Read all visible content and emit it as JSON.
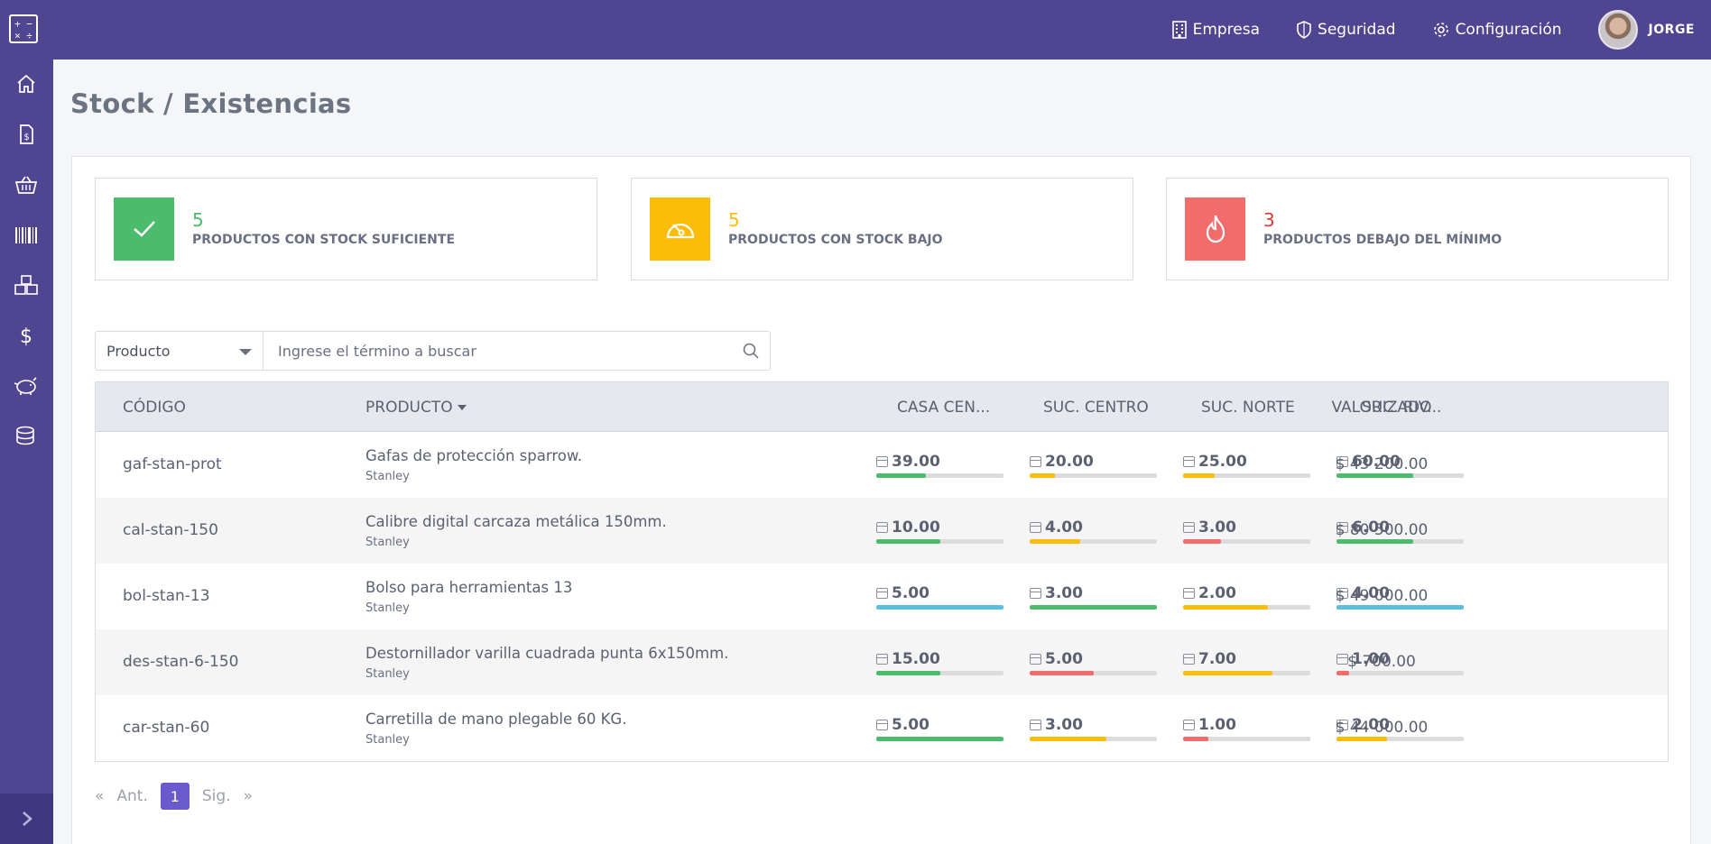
{
  "topbar": {
    "nav": [
      {
        "label": "Empresa",
        "icon": "building-icon"
      },
      {
        "label": "Seguridad",
        "icon": "shield-icon"
      },
      {
        "label": "Configuración",
        "icon": "gear-icon"
      }
    ],
    "user_name": "JORGE"
  },
  "sidebar": {
    "items": [
      "home-icon",
      "invoice-icon",
      "basket-icon",
      "barcode-icon",
      "boxes-icon",
      "dollar-icon",
      "piggy-bank-icon",
      "coins-icon"
    ],
    "toggle": "chevron-right-icon"
  },
  "page": {
    "title": "Stock / Existencias"
  },
  "stats": [
    {
      "value": "5",
      "label": "PRODUCTOS CON STOCK SUFICIENTE",
      "color": "#4cbb6c",
      "icon": "check-icon"
    },
    {
      "value": "5",
      "label": "PRODUCTOS CON STOCK BAJO",
      "color": "#fbbd08",
      "icon": "gauge-icon"
    },
    {
      "value": "3",
      "label": "PRODUCTOS DEBAJO DEL MÍNIMO",
      "color": "#f36c6c",
      "icon": "flame-icon"
    }
  ],
  "search": {
    "selected": "Producto",
    "placeholder": "Ingrese el término a buscar"
  },
  "table": {
    "headers": {
      "code": "CÓDIGO",
      "product": "PRODUCTO",
      "casa": "CASA CEN...",
      "centro": "SUC. CENTRO",
      "norte": "SUC. NORTE",
      "riv": "SUC. RIV...",
      "valor": "VALORIZADO"
    },
    "rows": [
      {
        "code": "gaf-stan-prot",
        "product": "Gafas de protección sparrow.",
        "brand": "Stanley",
        "stocks": [
          {
            "qty": "39.00",
            "level": 0.39,
            "color": "#4cbb6c"
          },
          {
            "qty": "20.00",
            "level": 0.2,
            "color": "#fbbd08"
          },
          {
            "qty": "25.00",
            "level": 0.25,
            "color": "#fbbd08"
          },
          {
            "qty": "60.00",
            "level": 0.6,
            "color": "#4cbb6c"
          }
        ],
        "value": "$ 43 200.00"
      },
      {
        "code": "cal-stan-150",
        "product": "Calibre digital carcaza metálica 150mm.",
        "brand": "Stanley",
        "stocks": [
          {
            "qty": "10.00",
            "level": 0.5,
            "color": "#4cbb6c"
          },
          {
            "qty": "4.00",
            "level": 0.4,
            "color": "#fbbd08"
          },
          {
            "qty": "3.00",
            "level": 0.3,
            "color": "#f36c6c"
          },
          {
            "qty": "6.00",
            "level": 0.6,
            "color": "#4cbb6c"
          }
        ],
        "value": "$ 80 500.00"
      },
      {
        "code": "bol-stan-13",
        "product": "Bolso para herramientas 13",
        "brand": "Stanley",
        "stocks": [
          {
            "qty": "5.00",
            "level": 1.0,
            "color": "#5bc0de"
          },
          {
            "qty": "3.00",
            "level": 1.0,
            "color": "#4cbb6c"
          },
          {
            "qty": "2.00",
            "level": 0.67,
            "color": "#fbbd08"
          },
          {
            "qty": "4.00",
            "level": 1.0,
            "color": "#5bc0de"
          }
        ],
        "value": "$ 49 000.00"
      },
      {
        "code": "des-stan-6-150",
        "product": "Destornillador varilla cuadrada punta 6x150mm.",
        "brand": "Stanley",
        "stocks": [
          {
            "qty": "15.00",
            "level": 0.5,
            "color": "#4cbb6c"
          },
          {
            "qty": "5.00",
            "level": 0.5,
            "color": "#f36c6c"
          },
          {
            "qty": "7.00",
            "level": 0.7,
            "color": "#fbbd08"
          },
          {
            "qty": "1.00",
            "level": 0.1,
            "color": "#f36c6c"
          }
        ],
        "value": "$ 700.00"
      },
      {
        "code": "car-stan-60",
        "product": "Carretilla de mano plegable 60 KG.",
        "brand": "Stanley",
        "stocks": [
          {
            "qty": "5.00",
            "level": 1.0,
            "color": "#4cbb6c"
          },
          {
            "qty": "3.00",
            "level": 0.6,
            "color": "#fbbd08"
          },
          {
            "qty": "1.00",
            "level": 0.2,
            "color": "#f36c6c"
          },
          {
            "qty": "2.00",
            "level": 0.4,
            "color": "#fbbd08"
          }
        ],
        "value": "$ 44 000.00"
      }
    ]
  },
  "pagination": {
    "first": "«",
    "prev": "Ant.",
    "current": "1",
    "next": "Sig.",
    "last": "»"
  }
}
